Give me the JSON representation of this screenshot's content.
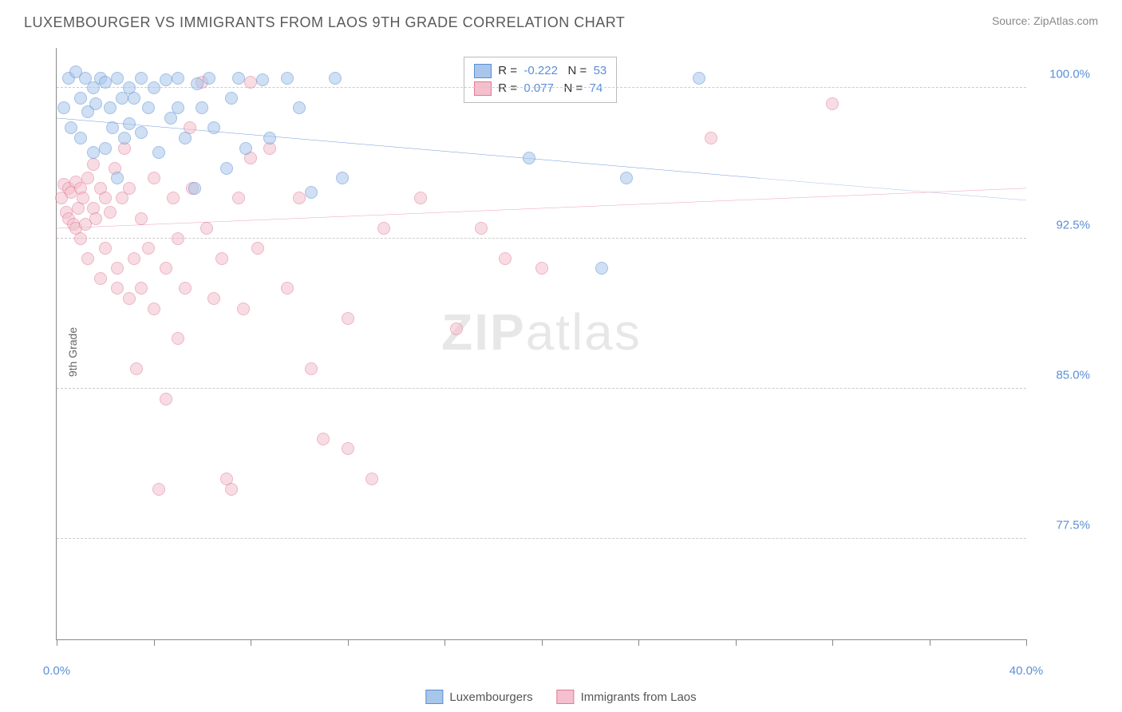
{
  "title": "LUXEMBOURGER VS IMMIGRANTS FROM LAOS 9TH GRADE CORRELATION CHART",
  "source_prefix": "Source: ",
  "source_name": "ZipAtlas.com",
  "ylabel": "9th Grade",
  "watermark": {
    "bold": "ZIP",
    "light": "atlas"
  },
  "chart": {
    "type": "scatter",
    "xlim": [
      0,
      40
    ],
    "ylim": [
      72.5,
      102
    ],
    "y_ticks": [
      77.5,
      85.0,
      92.5,
      100.0
    ],
    "y_tick_labels": [
      "77.5%",
      "85.0%",
      "92.5%",
      "100.0%"
    ],
    "x_ticks": [
      0,
      4,
      8,
      12,
      16,
      20,
      24,
      28,
      32,
      36,
      40
    ],
    "x_tick_labels": {
      "0": "0.0%",
      "40": "40.0%"
    },
    "grid_color": "#cccccc",
    "axis_color": "#888888",
    "background": "#ffffff",
    "point_radius": 8,
    "point_opacity": 0.55,
    "series": [
      {
        "name": "Luxembourgers",
        "fill": "#a8c6ec",
        "stroke": "#5a8ed0",
        "line_color": "#2f6fc9",
        "R": "-0.222",
        "N": "53",
        "trend": {
          "x1": 0,
          "y1": 98.5,
          "x2": 29,
          "y2": 95.5,
          "x2_ext": 40,
          "y2_ext": 94.4
        },
        "points": [
          [
            0.3,
            99.0
          ],
          [
            0.5,
            100.5
          ],
          [
            0.6,
            98.0
          ],
          [
            0.8,
            100.8
          ],
          [
            1.0,
            99.5
          ],
          [
            1.0,
            97.5
          ],
          [
            1.2,
            100.5
          ],
          [
            1.3,
            98.8
          ],
          [
            1.5,
            100.0
          ],
          [
            1.5,
            96.8
          ],
          [
            1.6,
            99.2
          ],
          [
            1.8,
            100.5
          ],
          [
            2.0,
            97.0
          ],
          [
            2.0,
            100.3
          ],
          [
            2.2,
            99.0
          ],
          [
            2.3,
            98.0
          ],
          [
            2.5,
            95.5
          ],
          [
            2.5,
            100.5
          ],
          [
            2.7,
            99.5
          ],
          [
            2.8,
            97.5
          ],
          [
            3.0,
            100.0
          ],
          [
            3.0,
            98.2
          ],
          [
            3.2,
            99.5
          ],
          [
            3.5,
            100.5
          ],
          [
            3.5,
            97.8
          ],
          [
            3.8,
            99.0
          ],
          [
            4.0,
            100.0
          ],
          [
            4.2,
            96.8
          ],
          [
            4.5,
            100.4
          ],
          [
            4.7,
            98.5
          ],
          [
            5.0,
            99.0
          ],
          [
            5.0,
            100.5
          ],
          [
            5.3,
            97.5
          ],
          [
            5.7,
            95.0
          ],
          [
            5.8,
            100.2
          ],
          [
            6.0,
            99.0
          ],
          [
            6.3,
            100.5
          ],
          [
            6.5,
            98.0
          ],
          [
            7.0,
            96.0
          ],
          [
            7.2,
            99.5
          ],
          [
            7.5,
            100.5
          ],
          [
            7.8,
            97.0
          ],
          [
            8.5,
            100.4
          ],
          [
            8.8,
            97.5
          ],
          [
            9.5,
            100.5
          ],
          [
            10.0,
            99.0
          ],
          [
            10.5,
            94.8
          ],
          [
            11.5,
            100.5
          ],
          [
            11.8,
            95.5
          ],
          [
            19.5,
            96.5
          ],
          [
            22.5,
            91.0
          ],
          [
            23.5,
            95.5
          ],
          [
            26.5,
            100.5
          ]
        ]
      },
      {
        "name": "Immigrants from Laos",
        "fill": "#f4c0cd",
        "stroke": "#e07a96",
        "line_color": "#e573a0",
        "R": "0.077",
        "N": "74",
        "trend": {
          "x1": 0,
          "y1": 93.0,
          "x2": 40,
          "y2": 95.0
        },
        "points": [
          [
            0.2,
            94.5
          ],
          [
            0.3,
            95.2
          ],
          [
            0.4,
            93.8
          ],
          [
            0.5,
            95.0
          ],
          [
            0.5,
            93.5
          ],
          [
            0.6,
            94.8
          ],
          [
            0.7,
            93.2
          ],
          [
            0.8,
            95.3
          ],
          [
            0.8,
            93.0
          ],
          [
            0.9,
            94.0
          ],
          [
            1.0,
            95.0
          ],
          [
            1.0,
            92.5
          ],
          [
            1.1,
            94.5
          ],
          [
            1.2,
            93.2
          ],
          [
            1.3,
            95.5
          ],
          [
            1.3,
            91.5
          ],
          [
            1.5,
            94.0
          ],
          [
            1.5,
            96.2
          ],
          [
            1.6,
            93.5
          ],
          [
            1.8,
            95.0
          ],
          [
            1.8,
            90.5
          ],
          [
            2.0,
            94.5
          ],
          [
            2.0,
            92.0
          ],
          [
            2.2,
            93.8
          ],
          [
            2.4,
            96.0
          ],
          [
            2.5,
            91.0
          ],
          [
            2.5,
            90.0
          ],
          [
            2.7,
            94.5
          ],
          [
            2.8,
            97.0
          ],
          [
            3.0,
            95.0
          ],
          [
            3.0,
            89.5
          ],
          [
            3.2,
            91.5
          ],
          [
            3.3,
            86.0
          ],
          [
            3.5,
            93.5
          ],
          [
            3.5,
            90.0
          ],
          [
            3.8,
            92.0
          ],
          [
            4.0,
            95.5
          ],
          [
            4.0,
            89.0
          ],
          [
            4.2,
            80.0
          ],
          [
            4.5,
            91.0
          ],
          [
            4.5,
            84.5
          ],
          [
            4.8,
            94.5
          ],
          [
            5.0,
            92.5
          ],
          [
            5.0,
            87.5
          ],
          [
            5.3,
            90.0
          ],
          [
            5.5,
            98.0
          ],
          [
            5.6,
            95.0
          ],
          [
            6.0,
            100.3
          ],
          [
            6.2,
            93.0
          ],
          [
            6.5,
            89.5
          ],
          [
            6.8,
            91.5
          ],
          [
            7.0,
            80.5
          ],
          [
            7.2,
            80.0
          ],
          [
            7.5,
            94.5
          ],
          [
            7.7,
            89.0
          ],
          [
            8.0,
            96.5
          ],
          [
            8.0,
            100.3
          ],
          [
            8.3,
            92.0
          ],
          [
            8.8,
            97.0
          ],
          [
            9.5,
            90.0
          ],
          [
            10.0,
            94.5
          ],
          [
            10.5,
            86.0
          ],
          [
            11.0,
            82.5
          ],
          [
            12.0,
            88.5
          ],
          [
            12.0,
            82.0
          ],
          [
            13.0,
            80.5
          ],
          [
            13.5,
            93.0
          ],
          [
            15.0,
            94.5
          ],
          [
            16.5,
            88.0
          ],
          [
            17.5,
            93.0
          ],
          [
            18.5,
            91.5
          ],
          [
            20.0,
            91.0
          ],
          [
            27.0,
            97.5
          ],
          [
            32.0,
            99.2
          ]
        ]
      }
    ]
  },
  "stats_legend": {
    "left_pct": 42,
    "top_pct": 1.5
  }
}
